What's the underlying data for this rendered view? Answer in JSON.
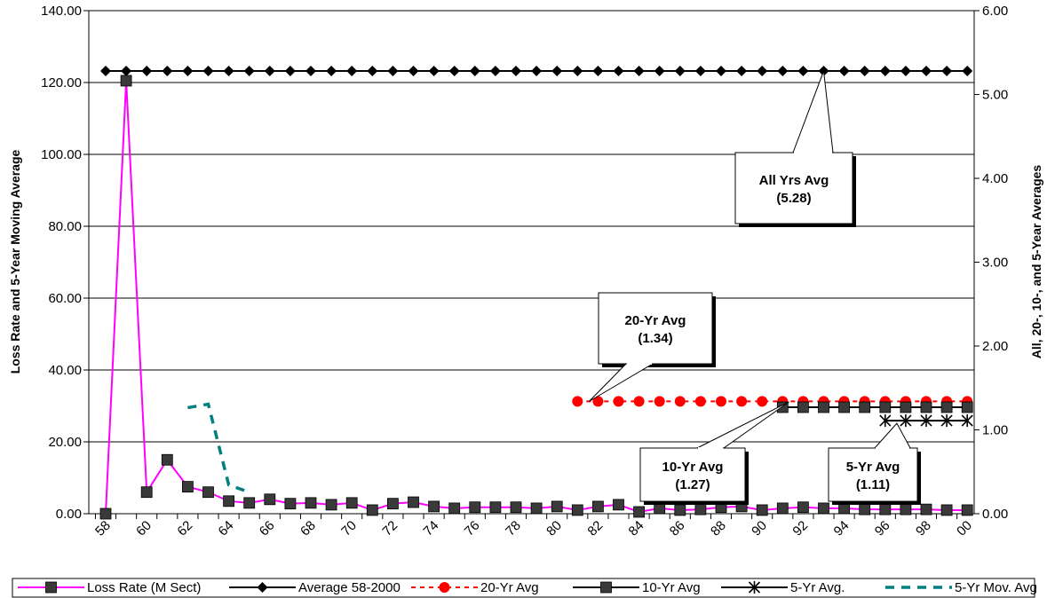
{
  "chart_data": {
    "type": "line",
    "ylabel": "Loss Rate and 5-Year Moving Average",
    "y2label": "All, 20-, 10-, and 5-Year Averages",
    "ylim": [
      0,
      140
    ],
    "y2lim": [
      0,
      6
    ],
    "y_ticks": [
      "0.00",
      "20.00",
      "40.00",
      "60.00",
      "80.00",
      "100.00",
      "120.00",
      "140.00"
    ],
    "y2_ticks": [
      "0.00",
      "1.00",
      "2.00",
      "3.00",
      "4.00",
      "5.00",
      "6.00"
    ],
    "x_tick_labels": [
      "58",
      "60",
      "62",
      "64",
      "66",
      "68",
      "70",
      "72",
      "74",
      "76",
      "78",
      "80",
      "82",
      "84",
      "86",
      "88",
      "90",
      "92",
      "94",
      "96",
      "98",
      "00"
    ],
    "x_years": [
      1958,
      1959,
      1960,
      1961,
      1962,
      1963,
      1964,
      1965,
      1966,
      1967,
      1968,
      1969,
      1970,
      1971,
      1972,
      1973,
      1974,
      1975,
      1976,
      1977,
      1978,
      1979,
      1980,
      1981,
      1982,
      1983,
      1984,
      1985,
      1986,
      1987,
      1988,
      1989,
      1990,
      1991,
      1992,
      1993,
      1994,
      1995,
      1996,
      1997,
      1998,
      1999,
      2000
    ],
    "grid": true,
    "legend_position": "bottom",
    "series": [
      {
        "name": "Loss Rate (M Sect)",
        "axis": "left",
        "color": "#ff00ff",
        "marker": "square",
        "marker_color": "#3a3a3a",
        "x": [
          1958,
          1959,
          1960,
          1961,
          1962,
          1963,
          1964,
          1965,
          1966,
          1967,
          1968,
          1969,
          1970,
          1971,
          1972,
          1973,
          1974,
          1975,
          1976,
          1977,
          1978,
          1979,
          1980,
          1981,
          1982,
          1983,
          1984,
          1985,
          1986,
          1987,
          1988,
          1989,
          1990,
          1991,
          1992,
          1993,
          1994,
          1995,
          1996,
          1997,
          1998,
          1999,
          2000
        ],
        "values": [
          0.0,
          120.5,
          6.0,
          15.0,
          7.5,
          6.0,
          3.5,
          3.0,
          4.0,
          2.8,
          3.0,
          2.5,
          3.0,
          1.0,
          2.8,
          3.2,
          2.0,
          1.5,
          1.8,
          1.8,
          1.8,
          1.5,
          2.0,
          1.0,
          2.0,
          2.5,
          0.5,
          1.5,
          1.0,
          1.2,
          1.8,
          2.0,
          1.0,
          1.5,
          1.8,
          1.5,
          1.5,
          1.2,
          1.2,
          1.2,
          1.2,
          1.0,
          1.0
        ]
      },
      {
        "name": "Average 58-2000",
        "axis": "right",
        "color": "#000000",
        "marker": "diamond",
        "x": [
          1958,
          1959,
          1960,
          1961,
          1962,
          1963,
          1964,
          1965,
          1966,
          1967,
          1968,
          1969,
          1970,
          1971,
          1972,
          1973,
          1974,
          1975,
          1976,
          1977,
          1978,
          1979,
          1980,
          1981,
          1982,
          1983,
          1984,
          1985,
          1986,
          1987,
          1988,
          1989,
          1990,
          1991,
          1992,
          1993,
          1994,
          1995,
          1996,
          1997,
          1998,
          1999,
          2000
        ],
        "values": [
          5.28,
          5.28,
          5.28,
          5.28,
          5.28,
          5.28,
          5.28,
          5.28,
          5.28,
          5.28,
          5.28,
          5.28,
          5.28,
          5.28,
          5.28,
          5.28,
          5.28,
          5.28,
          5.28,
          5.28,
          5.28,
          5.28,
          5.28,
          5.28,
          5.28,
          5.28,
          5.28,
          5.28,
          5.28,
          5.28,
          5.28,
          5.28,
          5.28,
          5.28,
          5.28,
          5.28,
          5.28,
          5.28,
          5.28,
          5.28,
          5.28,
          5.28,
          5.28
        ]
      },
      {
        "name": "20-Yr Avg",
        "axis": "right",
        "color": "#ff0000",
        "marker": "circle",
        "dashed": true,
        "x": [
          1981,
          1982,
          1983,
          1984,
          1985,
          1986,
          1987,
          1988,
          1989,
          1990,
          1991,
          1992,
          1993,
          1994,
          1995,
          1996,
          1997,
          1998,
          1999,
          2000
        ],
        "values": [
          1.34,
          1.34,
          1.34,
          1.34,
          1.34,
          1.34,
          1.34,
          1.34,
          1.34,
          1.34,
          1.34,
          1.34,
          1.34,
          1.34,
          1.34,
          1.34,
          1.34,
          1.34,
          1.34,
          1.34
        ]
      },
      {
        "name": "10-Yr Avg",
        "axis": "right",
        "color": "#000000",
        "marker": "square",
        "marker_color": "#3a3a3a",
        "x": [
          1991,
          1992,
          1993,
          1994,
          1995,
          1996,
          1997,
          1998,
          1999,
          2000
        ],
        "values": [
          1.27,
          1.27,
          1.27,
          1.27,
          1.27,
          1.27,
          1.27,
          1.27,
          1.27,
          1.27
        ]
      },
      {
        "name": "5-Yr Avg.",
        "axis": "right",
        "color": "#000000",
        "marker": "asterisk",
        "x": [
          1996,
          1997,
          1998,
          1999,
          2000
        ],
        "values": [
          1.11,
          1.11,
          1.11,
          1.11,
          1.11
        ]
      },
      {
        "name": "5-Yr Mov. Avg",
        "axis": "left",
        "color": "#008080",
        "dashed": true,
        "marker": "none",
        "x": [
          1962,
          1963,
          1964,
          1965
        ],
        "values": [
          29.5,
          30.5,
          8.0,
          6.0
        ]
      }
    ],
    "annotations": [
      {
        "line1": "All Yrs Avg",
        "line2": "(5.28)"
      },
      {
        "line1": "20-Yr Avg",
        "line2": "(1.34)"
      },
      {
        "line1": "10-Yr Avg",
        "line2": "(1.27)"
      },
      {
        "line1": "5-Yr Avg",
        "line2": "(1.11)"
      }
    ]
  }
}
